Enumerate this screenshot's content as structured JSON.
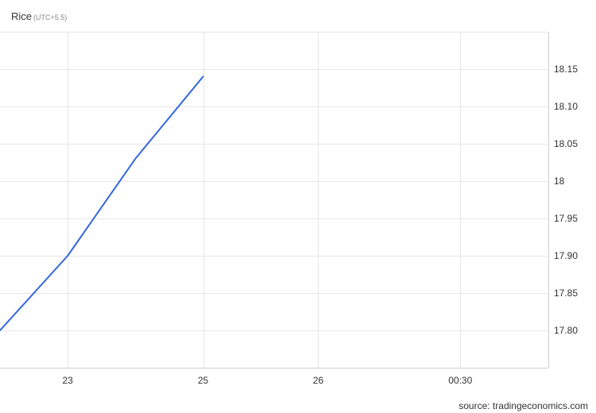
{
  "title": "Rice",
  "timezone": "(UTC+5.5)",
  "source": "source: tradingeconomics.com",
  "colors": {
    "line": "#3366dd",
    "grid": "#e6e6e6",
    "axis": "#cccccc"
  },
  "chart_data": {
    "type": "line",
    "title": "Rice",
    "xlabel": "",
    "ylabel": "",
    "x_ticks": [
      {
        "label": "23",
        "x": 1
      },
      {
        "label": "25",
        "x": 3
      },
      {
        "label": "26",
        "x": 4.7
      },
      {
        "label": "00:30",
        "x": 6.8
      }
    ],
    "xlim": [
      0,
      8.1
    ],
    "y_ticks": [
      "18.15",
      "18.10",
      "18.05",
      "18",
      "17.95",
      "17.90",
      "17.85",
      "17.80"
    ],
    "ylim": [
      17.75,
      18.2
    ],
    "grid": true,
    "series": [
      {
        "points": [
          {
            "x": 0,
            "y": 17.8
          },
          {
            "x": 1,
            "y": 17.9
          },
          {
            "x": 2,
            "y": 18.03
          },
          {
            "x": 3,
            "y": 18.14
          }
        ]
      }
    ]
  }
}
